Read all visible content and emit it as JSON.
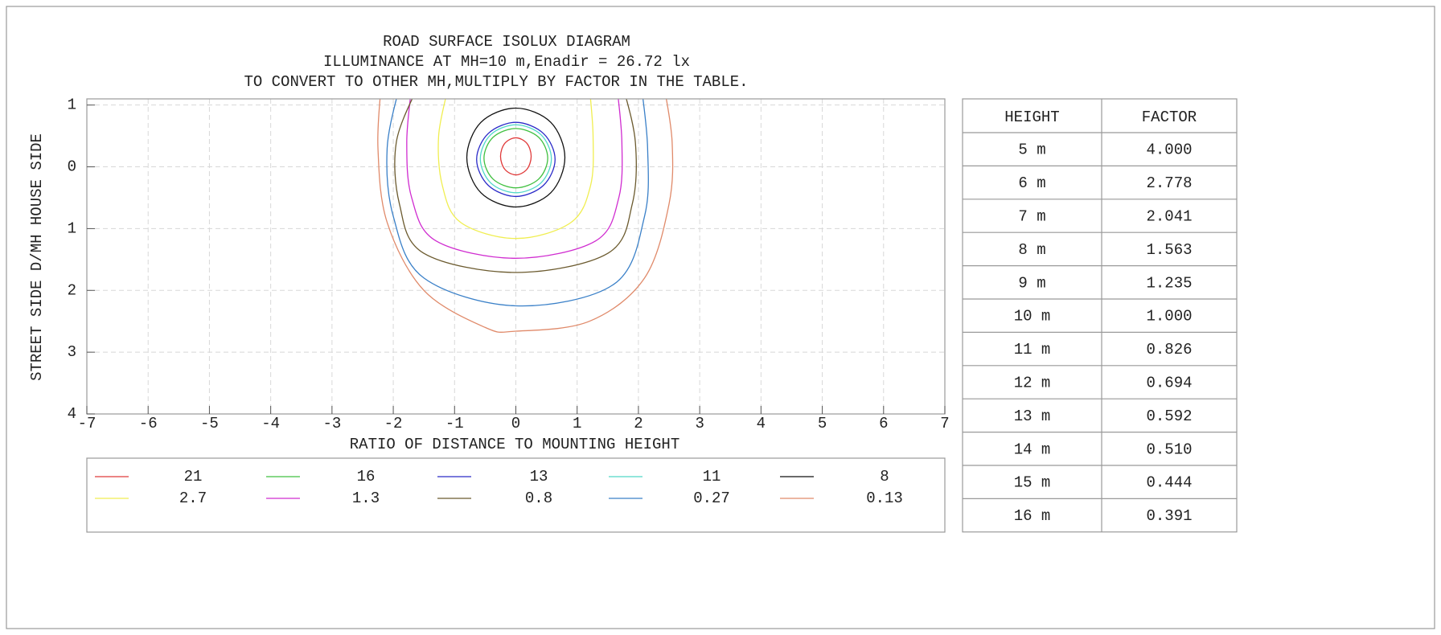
{
  "chart_data": {
    "type": "contour",
    "title": [
      "ROAD SURFACE ISOLUX DIAGRAM",
      "ILLUMINANCE AT MH=10 m,Enadir  = 26.72 lx",
      "TO CONVERT TO OTHER MH,MULTIPLY BY FACTOR IN THE TABLE."
    ],
    "x_label": "RATIO OF DISTANCE TO MOUNTING HEIGHT",
    "y_label": "STREET SIDE  D/MH  HOUSE SIDE",
    "xlim": [
      -7,
      7
    ],
    "ylim": [
      -1.1,
      4
    ],
    "xticks": [
      -7,
      -6,
      -5,
      -4,
      -3,
      -2,
      -1,
      0,
      1,
      2,
      3,
      4,
      5,
      6,
      7
    ],
    "yticks": [
      {
        "value": -1,
        "label": "1"
      },
      0,
      1,
      2,
      3,
      4
    ],
    "grid": true,
    "series": [
      {
        "name": "21",
        "color": "#e03a3a",
        "closed": true,
        "x": [
          0.25,
          0.18,
          0,
          -0.18,
          -0.25,
          -0.18,
          0,
          0.18
        ],
        "y": [
          -0.17,
          0.04,
          0.13,
          0.04,
          -0.17,
          -0.38,
          -0.47,
          -0.38
        ]
      },
      {
        "name": "16",
        "color": "#40c040",
        "closed": true,
        "x": [
          0.52,
          0.37,
          0,
          -0.37,
          -0.52,
          -0.37,
          0,
          0.37
        ],
        "y": [
          -0.14,
          0.2,
          0.34,
          0.2,
          -0.14,
          -0.48,
          -0.62,
          -0.48
        ]
      },
      {
        "name": "13",
        "color": "#2a2ac8",
        "closed": true,
        "x": [
          0.64,
          0.45,
          0,
          -0.45,
          -0.64,
          -0.45,
          0,
          0.45
        ],
        "y": [
          -0.12,
          0.3,
          0.48,
          0.3,
          -0.12,
          -0.54,
          -0.72,
          -0.54
        ]
      },
      {
        "name": "11",
        "color": "#50d8c8",
        "closed": true,
        "x": [
          0.58,
          0.41,
          0,
          -0.41,
          -0.58,
          -0.41,
          0,
          0.41
        ],
        "y": [
          -0.13,
          0.26,
          0.42,
          0.26,
          -0.13,
          -0.52,
          -0.68,
          -0.52
        ]
      },
      {
        "name": "8",
        "color": "#111111",
        "closed": true,
        "x": [
          0.8,
          0.57,
          0,
          -0.57,
          -0.8,
          -0.57,
          0,
          0.57
        ],
        "y": [
          -0.15,
          0.42,
          0.65,
          0.42,
          -0.15,
          -0.72,
          -0.95,
          -0.72
        ]
      },
      {
        "name": "2.7",
        "color": "#f0ee50",
        "closed": false,
        "x": [
          -1.1,
          -1.26,
          -1.2,
          -0.9,
          0,
          0.9,
          1.22,
          1.26,
          1.2
        ],
        "y": [
          -1.3,
          -0.5,
          0.3,
          0.9,
          1.16,
          0.9,
          0.3,
          -0.5,
          -1.3
        ]
      },
      {
        "name": "1.3",
        "color": "#d02cd0",
        "closed": false,
        "x": [
          -1.7,
          -1.78,
          -1.7,
          -1.3,
          0,
          1.3,
          1.68,
          1.73,
          1.65
        ],
        "y": [
          -1.3,
          -0.4,
          0.5,
          1.2,
          1.48,
          1.2,
          0.5,
          -0.4,
          -1.3
        ]
      },
      {
        "name": "0.8",
        "color": "#6b5a2e",
        "closed": false,
        "x": [
          -1.6,
          -1.95,
          -1.9,
          -1.5,
          0,
          1.5,
          1.9,
          1.95,
          1.75
        ],
        "y": [
          -1.3,
          -0.4,
          0.6,
          1.4,
          1.71,
          1.4,
          0.6,
          -0.4,
          -1.3
        ]
      },
      {
        "name": "0.27",
        "color": "#3a80c8",
        "closed": false,
        "x": [
          -1.9,
          -2.1,
          -2.0,
          -1.5,
          0,
          1.6,
          2.1,
          2.15,
          2.05
        ],
        "y": [
          -1.3,
          -0.3,
          0.8,
          1.8,
          2.25,
          1.9,
          0.8,
          -0.3,
          -1.3
        ]
      },
      {
        "name": "0.13",
        "color": "#e08a6a",
        "closed": false,
        "x": [
          -2.2,
          -2.25,
          -2.1,
          -1.5,
          -0.5,
          0,
          1.2,
          2.1,
          2.5,
          2.55,
          2.42
        ],
        "y": [
          -1.3,
          -0.3,
          0.9,
          2.0,
          2.6,
          2.66,
          2.5,
          1.8,
          0.6,
          -0.4,
          -1.3
        ]
      }
    ]
  },
  "table": {
    "header": [
      "HEIGHT",
      "FACTOR"
    ],
    "rows": [
      [
        "5 m",
        "4.000"
      ],
      [
        "6 m",
        "2.778"
      ],
      [
        "7 m",
        "2.041"
      ],
      [
        "8 m",
        "1.563"
      ],
      [
        "9 m",
        "1.235"
      ],
      [
        "10 m",
        "1.000"
      ],
      [
        "11 m",
        "0.826"
      ],
      [
        "12 m",
        "0.694"
      ],
      [
        "13 m",
        "0.592"
      ],
      [
        "14 m",
        "0.510"
      ],
      [
        "15 m",
        "0.444"
      ],
      [
        "16 m",
        "0.391"
      ]
    ]
  }
}
